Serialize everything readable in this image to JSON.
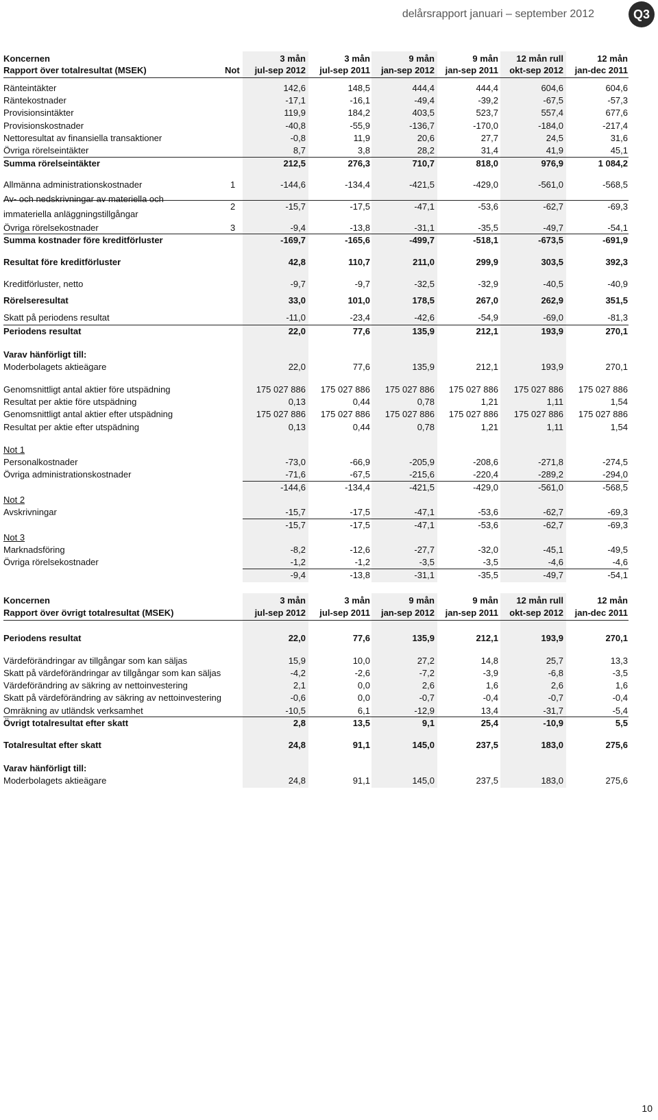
{
  "header": {
    "title": "delårsrapport januari – september 2012",
    "badge": "Q3"
  },
  "tables": [
    {
      "heading": "Koncernen",
      "subheading": "Rapport över totalresultat (MSEK)",
      "note_heading": "Not",
      "columns": [
        {
          "period": "3 mån",
          "range": "jul-sep 2012"
        },
        {
          "period": "3 mån",
          "range": "jul-sep 2011"
        },
        {
          "period": "9 mån",
          "range": "jan-sep 2012"
        },
        {
          "period": "9 mån",
          "range": "jan-sep 2011"
        },
        {
          "period": "12 mån rull",
          "range": "okt-sep 2012"
        },
        {
          "period": "12 mån",
          "range": "jan-dec 2011"
        }
      ],
      "rows": [
        {
          "label": "Ränteintäkter",
          "values": [
            "142,6",
            "148,5",
            "444,4",
            "444,4",
            "604,6",
            "604,6"
          ]
        },
        {
          "label": "Räntekostnader",
          "values": [
            "-17,1",
            "-16,1",
            "-49,4",
            "-39,2",
            "-67,5",
            "-57,3"
          ]
        },
        {
          "label": "Provisionsintäkter",
          "values": [
            "119,9",
            "184,2",
            "403,5",
            "523,7",
            "557,4",
            "677,6"
          ]
        },
        {
          "label": "Provisionskostnader",
          "values": [
            "-40,8",
            "-55,9",
            "-136,7",
            "-170,0",
            "-184,0",
            "-217,4"
          ]
        },
        {
          "label": "Nettoresultat av finansiella transaktioner",
          "values": [
            "-0,8",
            "11,9",
            "20,6",
            "27,7",
            "24,5",
            "31,6"
          ]
        },
        {
          "label": "Övriga rörelseintäkter",
          "values": [
            "8,7",
            "3,8",
            "28,2",
            "31,4",
            "41,9",
            "45,1"
          ]
        },
        {
          "label": "Summa rörelseintäkter",
          "values": [
            "212,5",
            "276,3",
            "710,7",
            "818,0",
            "976,9",
            "1 084,2"
          ]
        },
        {
          "label": "Allmänna administrationskostnader",
          "note": "1",
          "values": [
            "-144,6",
            "-134,4",
            "-421,5",
            "-429,0",
            "-561,0",
            "-568,5"
          ]
        },
        {
          "label": [
            "Av- och nedskrivningar av materiella och",
            "immateriella anläggningstillgångar"
          ],
          "note": "2",
          "values": [
            "-15,7",
            "-17,5",
            "-47,1",
            "-53,6",
            "-62,7",
            "-69,3"
          ]
        },
        {
          "label": "Övriga rörelsekostnader",
          "note": "3",
          "values": [
            "-9,4",
            "-13,8",
            "-31,1",
            "-35,5",
            "-49,7",
            "-54,1"
          ]
        },
        {
          "label": "Summa kostnader före kreditförluster",
          "values": [
            "-169,7",
            "-165,6",
            "-499,7",
            "-518,1",
            "-673,5",
            "-691,9"
          ]
        },
        {
          "label": "Resultat före kreditförluster",
          "values": [
            "42,8",
            "110,7",
            "211,0",
            "299,9",
            "303,5",
            "392,3"
          ]
        },
        {
          "label": "Kreditförluster, netto",
          "values": [
            "-9,7",
            "-9,7",
            "-32,5",
            "-32,9",
            "-40,5",
            "-40,9"
          ]
        },
        {
          "label": "Rörelseresultat",
          "values": [
            "33,0",
            "101,0",
            "178,5",
            "267,0",
            "262,9",
            "351,5"
          ]
        },
        {
          "label": "Skatt på periodens resultat",
          "values": [
            "-11,0",
            "-23,4",
            "-42,6",
            "-54,9",
            "-69,0",
            "-81,3"
          ]
        },
        {
          "label": "Periodens resultat",
          "values": [
            "22,0",
            "77,6",
            "135,9",
            "212,1",
            "193,9",
            "270,1"
          ]
        },
        {
          "label": "Varav hänförligt till:"
        },
        {
          "label": "Moderbolagets aktieägare",
          "values": [
            "22,0",
            "77,6",
            "135,9",
            "212,1",
            "193,9",
            "270,1"
          ]
        },
        {
          "label": "Genomsnittligt antal aktier före utspädning",
          "values": [
            "175 027 886",
            "175 027 886",
            "175 027 886",
            "175 027 886",
            "175 027 886",
            "175 027 886"
          ]
        },
        {
          "label": "Resultat per aktie före utspädning",
          "values": [
            "0,13",
            "0,44",
            "0,78",
            "1,21",
            "1,11",
            "1,54"
          ]
        },
        {
          "label": "Genomsnittligt antal aktier efter utspädning",
          "values": [
            "175 027 886",
            "175 027 886",
            "175 027 886",
            "175 027 886",
            "175 027 886",
            "175 027 886"
          ]
        },
        {
          "label": "Resultat per aktie efter utspädning",
          "values": [
            "0,13",
            "0,44",
            "0,78",
            "1,21",
            "1,11",
            "1,54"
          ]
        },
        {
          "label": "Not 1"
        },
        {
          "label": "Personalkostnader",
          "values": [
            "-73,0",
            "-66,9",
            "-205,9",
            "-208,6",
            "-271,8",
            "-274,5"
          ]
        },
        {
          "label": "Övriga administrationskostnader",
          "values": [
            "-71,6",
            "-67,5",
            "-215,6",
            "-220,4",
            "-289,2",
            "-294,0"
          ]
        },
        {
          "values": [
            "-144,6",
            "-134,4",
            "-421,5",
            "-429,0",
            "-561,0",
            "-568,5"
          ]
        },
        {
          "label": "Not 2"
        },
        {
          "label": "Avskrivningar",
          "values": [
            "-15,7",
            "-17,5",
            "-47,1",
            "-53,6",
            "-62,7",
            "-69,3"
          ]
        },
        {
          "values": [
            "-15,7",
            "-17,5",
            "-47,1",
            "-53,6",
            "-62,7",
            "-69,3"
          ]
        },
        {
          "label": "Not 3"
        },
        {
          "label": "Marknadsföring",
          "values": [
            "-8,2",
            "-12,6",
            "-27,7",
            "-32,0",
            "-45,1",
            "-49,5"
          ]
        },
        {
          "label": "Övriga rörelsekostnader",
          "values": [
            "-1,2",
            "-1,2",
            "-3,5",
            "-3,5",
            "-4,6",
            "-4,6"
          ]
        },
        {
          "values": [
            "-9,4",
            "-13,8",
            "-31,1",
            "-35,5",
            "-49,7",
            "-54,1"
          ]
        }
      ]
    },
    {
      "heading": "Koncernen",
      "subheading": "Rapport över övrigt totalresultat (MSEK)",
      "columns": [
        {
          "period": "3 mån",
          "range": "jul-sep 2012"
        },
        {
          "period": "3 mån",
          "range": "jul-sep 2011"
        },
        {
          "period": "9 mån",
          "range": "jan-sep 2012"
        },
        {
          "period": "9 mån",
          "range": "jan-sep 2011"
        },
        {
          "period": "12 mån rull",
          "range": "okt-sep 2012"
        },
        {
          "period": "12 mån",
          "range": "jan-dec 2011"
        }
      ],
      "rows": [
        {
          "label": "Periodens resultat",
          "values": [
            "22,0",
            "77,6",
            "135,9",
            "212,1",
            "193,9",
            "270,1"
          ]
        },
        {
          "label": "Värdeförändringar av tillgångar som kan säljas",
          "values": [
            "15,9",
            "10,0",
            "27,2",
            "14,8",
            "25,7",
            "13,3"
          ]
        },
        {
          "label": "Skatt på värdeförändringar av tillgångar som kan säljas",
          "values": [
            "-4,2",
            "-2,6",
            "-7,2",
            "-3,9",
            "-6,8",
            "-3,5"
          ]
        },
        {
          "label": "Värdeförändring av säkring av nettoinvestering",
          "values": [
            "2,1",
            "0,0",
            "2,6",
            "1,6",
            "2,6",
            "1,6"
          ]
        },
        {
          "label": "Skatt på värdeförändring av säkring av nettoinvestering",
          "values": [
            "-0,6",
            "0,0",
            "-0,7",
            "-0,4",
            "-0,7",
            "-0,4"
          ]
        },
        {
          "label": "Omräkning av utländsk verksamhet",
          "values": [
            "-10,5",
            "6,1",
            "-12,9",
            "13,4",
            "-31,7",
            "-5,4"
          ]
        },
        {
          "label": "Övrigt totalresultat efter skatt",
          "values": [
            "2,8",
            "13,5",
            "9,1",
            "25,4",
            "-10,9",
            "5,5"
          ]
        },
        {
          "label": "Totalresultat efter skatt",
          "values": [
            "24,8",
            "91,1",
            "145,0",
            "237,5",
            "183,0",
            "275,6"
          ]
        },
        {
          "label": "Varav hänförligt till:"
        },
        {
          "label": "Moderbolagets aktieägare",
          "values": [
            "24,8",
            "91,1",
            "145,0",
            "237,5",
            "183,0",
            "275,6"
          ]
        }
      ]
    }
  ],
  "footer": {
    "page_number": "10"
  }
}
